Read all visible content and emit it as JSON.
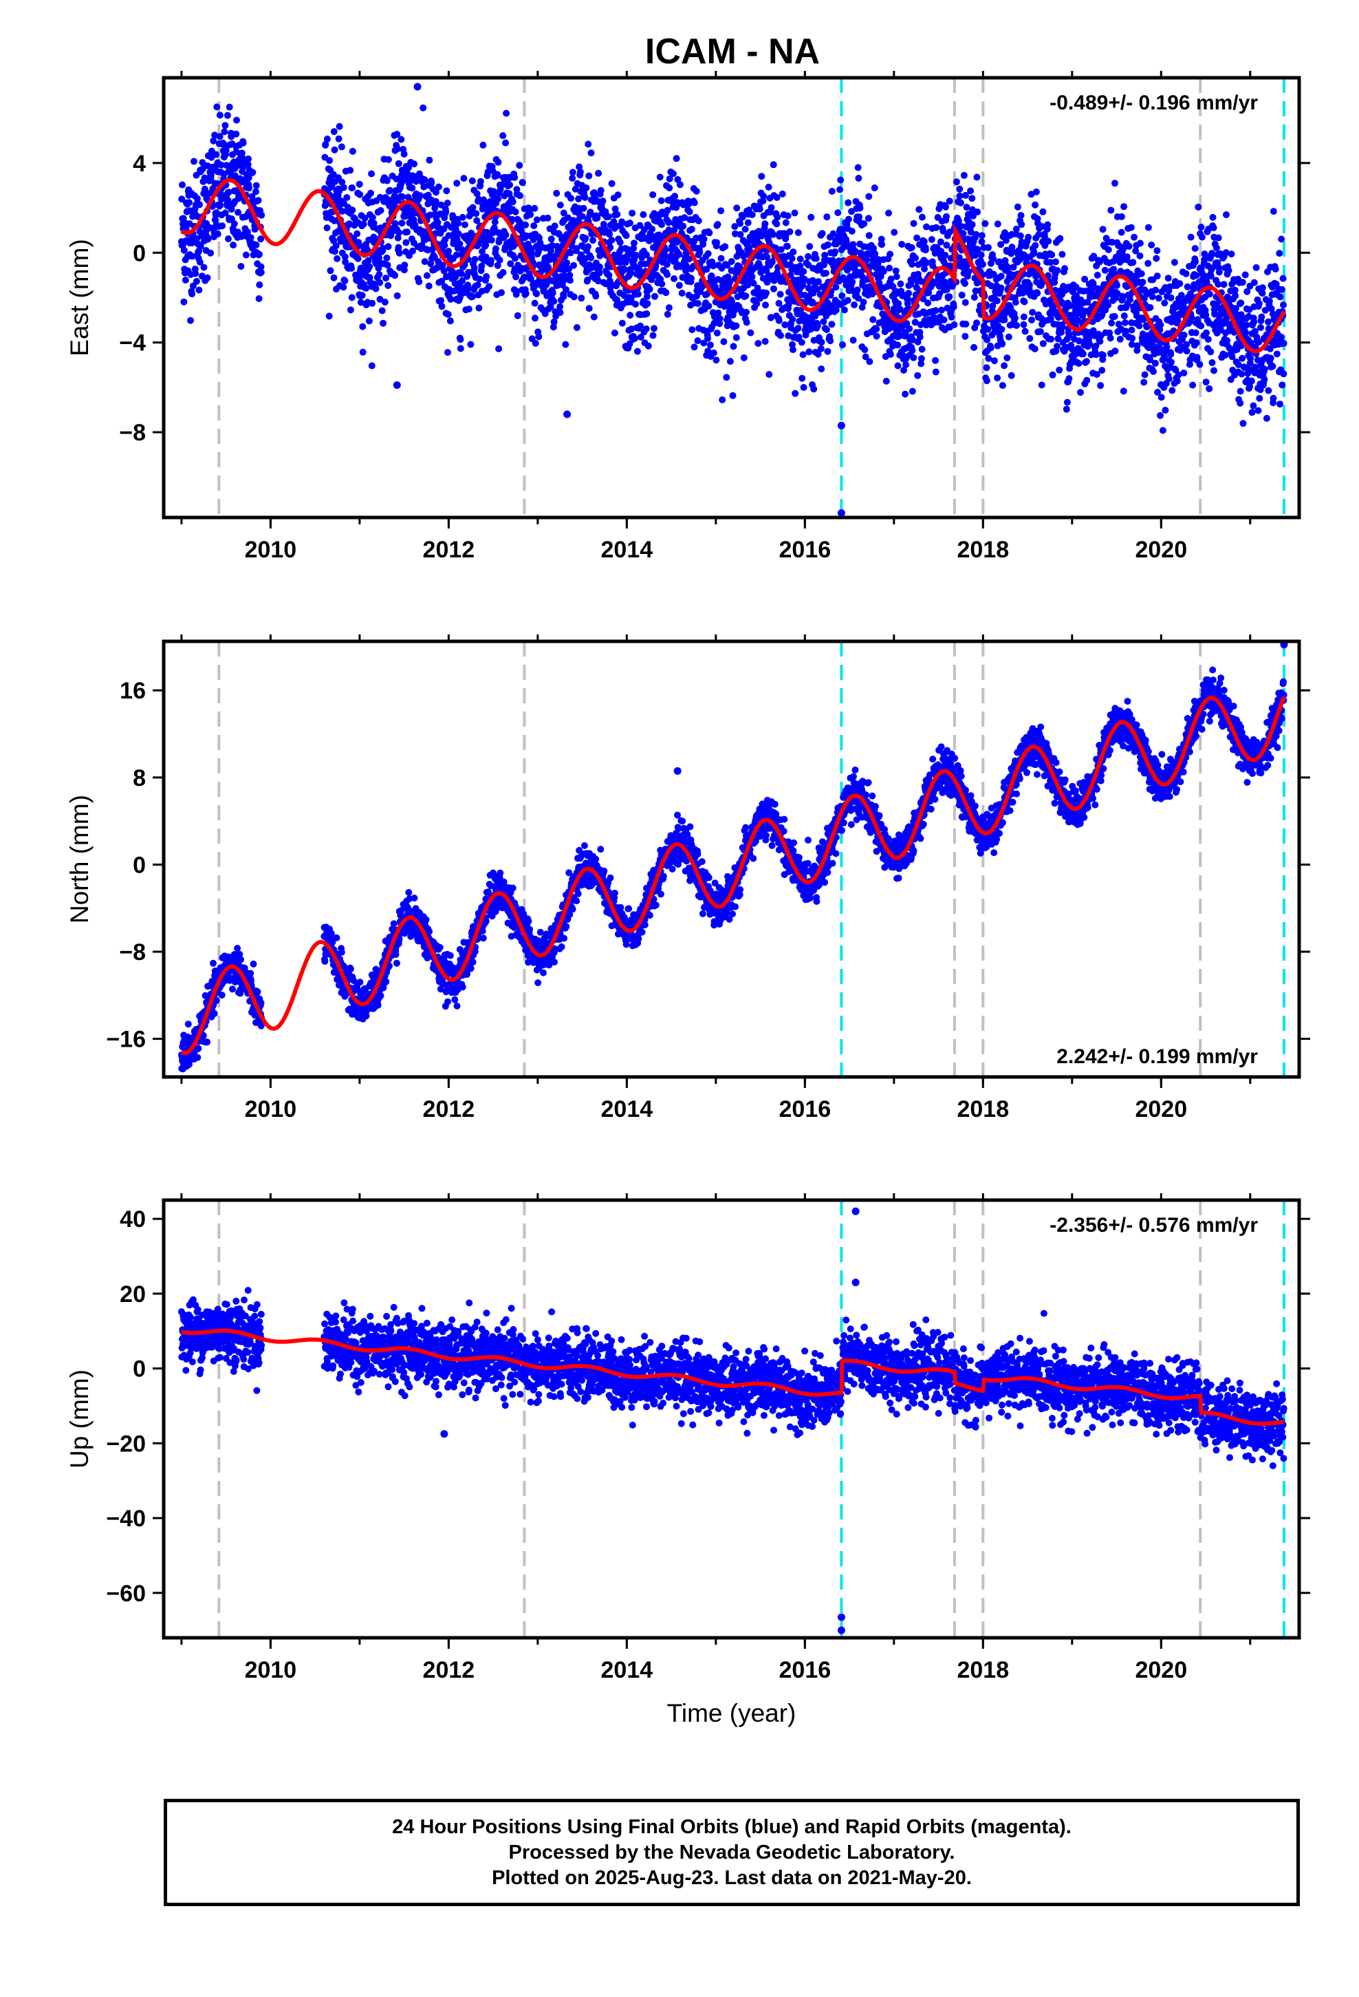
{
  "title": "ICAM - NA",
  "xlabel": "Time (year)",
  "footer": {
    "line1": "24 Hour Positions Using Final Orbits (blue) and Rapid Orbits (magenta).",
    "line2": "Processed by the Nevada Geodetic Laboratory.",
    "line3": "Plotted on 2025-Aug-23. Last data on 2021-May-20."
  },
  "colors": {
    "points": "#0000ff",
    "model": "#ff0000",
    "equipment_change": "#c0c0c0",
    "earthquake": "#00e5ee",
    "frame": "#000000"
  },
  "chart_data": [
    {
      "type": "scatter",
      "component": "east",
      "ylabel": "East (mm)",
      "rate_text": "-0.489+/- 0.196 mm/yr",
      "rate_position": "top-right",
      "xlim": [
        2008.8,
        2021.55
      ],
      "ylim": [
        -11.8,
        7.8
      ],
      "x_ticks": [
        2010,
        2012,
        2014,
        2016,
        2018,
        2020
      ],
      "y_ticks": [
        -8,
        -4,
        0,
        4
      ],
      "grid": false,
      "vertical_lines_gray": [
        2009.42,
        2012.85,
        2017.68,
        2018.0,
        2020.44
      ],
      "vertical_lines_cyan": [
        2016.41,
        2021.38
      ],
      "gap": [
        2009.9,
        2010.6
      ],
      "model": {
        "trend_start_value": 2.2,
        "trend_mm_per_yr": -0.489,
        "annual_amplitude_mm": 1.3,
        "annual_peak_month_fraction": 0.55,
        "offsets": [
          {
            "x": 2017.68,
            "value": 2.2
          },
          {
            "x": 2018.0,
            "value": -1.6
          }
        ]
      },
      "scatter_sigma_mm": 1.5,
      "outliers": [
        {
          "x": 2016.41,
          "y": -11.6
        },
        {
          "x": 2016.41,
          "y": -7.7
        },
        {
          "x": 2011.42,
          "y": -5.9
        },
        {
          "x": 2013.33,
          "y": -7.2
        },
        {
          "x": 2011.65,
          "y": 7.4
        }
      ]
    },
    {
      "type": "scatter",
      "component": "north",
      "ylabel": "North (mm)",
      "rate_text": "2.242+/- 0.199 mm/yr",
      "rate_position": "bottom-right",
      "xlim": [
        2008.8,
        2021.55
      ],
      "ylim": [
        -19.5,
        20.5
      ],
      "x_ticks": [
        2010,
        2012,
        2014,
        2016,
        2018,
        2020
      ],
      "y_ticks": [
        -16,
        -8,
        0,
        8,
        16
      ],
      "grid": false,
      "vertical_lines_gray": [
        2009.42,
        2012.85,
        2017.68,
        2018.0,
        2020.44
      ],
      "vertical_lines_cyan": [
        2016.41,
        2021.38
      ],
      "gap": [
        2009.9,
        2010.6
      ],
      "model": {
        "trend_start_value": -14.0,
        "trend_mm_per_yr": 2.242,
        "annual_amplitude_mm": 3.4,
        "annual_peak_month_fraction": 0.55,
        "offsets": []
      },
      "scatter_sigma_mm": 0.9,
      "outliers": [
        {
          "x": 2014.57,
          "y": 8.6
        },
        {
          "x": 2021.38,
          "y": 20.2
        }
      ]
    },
    {
      "type": "scatter",
      "component": "up",
      "ylabel": "Up (mm)",
      "rate_text": "-2.356+/- 0.576 mm/yr",
      "rate_position": "top-right",
      "xlim": [
        2008.8,
        2021.55
      ],
      "ylim": [
        -72,
        45
      ],
      "x_ticks": [
        2010,
        2012,
        2014,
        2016,
        2018,
        2020
      ],
      "y_ticks": [
        -60,
        -40,
        -20,
        0,
        20,
        40
      ],
      "grid": false,
      "vertical_lines_gray": [
        2009.42,
        2012.85,
        2017.68,
        2018.0,
        2020.44
      ],
      "vertical_lines_cyan": [
        2016.41,
        2021.38
      ],
      "gap": [
        2009.9,
        2010.6
      ],
      "model": {
        "trend_start_value": 10.5,
        "trend_mm_per_yr": -2.356,
        "annual_amplitude_mm": 0.8,
        "annual_peak_month_fraction": 0.55,
        "offsets": [
          {
            "x": 2016.41,
            "value": 8.5
          },
          {
            "x": 2017.68,
            "value": -3.0
          },
          {
            "x": 2018.0,
            "value": 3.0
          },
          {
            "x": 2020.44,
            "value": -4.5
          }
        ]
      },
      "scatter_sigma_mm": 4.2,
      "outliers": [
        {
          "x": 2016.41,
          "y": -66.5
        },
        {
          "x": 2016.41,
          "y": -70.0
        },
        {
          "x": 2016.57,
          "y": 42.0
        },
        {
          "x": 2016.57,
          "y": 23.0
        },
        {
          "x": 2011.95,
          "y": -17.5
        }
      ]
    }
  ]
}
